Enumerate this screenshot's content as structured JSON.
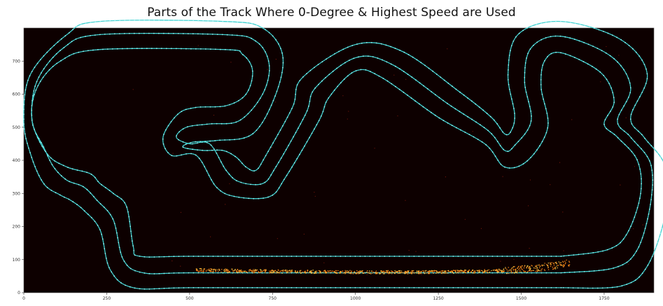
{
  "chart_data": {
    "type": "scatter",
    "title": "Parts of the Track Where 0-Degree & Highest Speed are Used",
    "xlabel": "",
    "ylabel": "",
    "xlim": [
      0,
      1900
    ],
    "ylim": [
      0,
      800
    ],
    "x_ticks": [
      0,
      250,
      500,
      750,
      1000,
      1250,
      1500,
      1750
    ],
    "y_ticks": [
      0,
      100,
      200,
      300,
      400,
      500,
      600,
      700
    ],
    "grid": false,
    "background": "#0d0000",
    "series": [
      {
        "color": "#3fd0d0",
        "points": [
          [
            1620,
            110
          ],
          [
            1320,
            110
          ],
          [
            900,
            110
          ],
          [
            500,
            110
          ],
          [
            350,
            110
          ],
          [
            330,
            140
          ],
          [
            310,
            260
          ],
          [
            270,
            300
          ],
          [
            230,
            330
          ],
          [
            200,
            360
          ],
          [
            130,
            380
          ],
          [
            70,
            420
          ],
          [
            25,
            520
          ],
          [
            40,
            620
          ],
          [
            110,
            700
          ],
          [
            230,
            735
          ],
          [
            600,
            735
          ],
          [
            660,
            720
          ],
          [
            690,
            670
          ],
          [
            670,
            600
          ],
          [
            610,
            565
          ],
          [
            520,
            560
          ],
          [
            465,
            540
          ],
          [
            420,
            470
          ],
          [
            445,
            415
          ],
          [
            520,
            415
          ],
          [
            580,
            320
          ],
          [
            640,
            290
          ],
          [
            740,
            290
          ],
          [
            790,
            350
          ],
          [
            890,
            520
          ],
          [
            920,
            590
          ],
          [
            1000,
            670
          ],
          [
            1080,
            650
          ],
          [
            1250,
            530
          ],
          [
            1390,
            450
          ],
          [
            1450,
            380
          ],
          [
            1520,
            400
          ],
          [
            1580,
            500
          ],
          [
            1560,
            620
          ],
          [
            1570,
            700
          ],
          [
            1620,
            725
          ],
          [
            1740,
            665
          ],
          [
            1780,
            580
          ],
          [
            1750,
            510
          ],
          [
            1790,
            470
          ],
          [
            1850,
            400
          ],
          [
            1860,
            300
          ],
          [
            1820,
            180
          ],
          [
            1760,
            130
          ],
          [
            1620,
            110
          ]
        ]
      },
      {
        "color": "#3fd0d0",
        "points": [
          [
            1620,
            60
          ],
          [
            1320,
            60
          ],
          [
            900,
            60
          ],
          [
            500,
            60
          ],
          [
            360,
            60
          ],
          [
            300,
            100
          ],
          [
            270,
            220
          ],
          [
            220,
            280
          ],
          [
            180,
            320
          ],
          [
            130,
            340
          ],
          [
            90,
            380
          ],
          [
            60,
            440
          ],
          [
            25,
            520
          ],
          [
            40,
            640
          ],
          [
            120,
            740
          ],
          [
            230,
            780
          ],
          [
            600,
            780
          ],
          [
            700,
            760
          ],
          [
            740,
            690
          ],
          [
            720,
            600
          ],
          [
            650,
            520
          ],
          [
            560,
            510
          ],
          [
            490,
            500
          ],
          [
            460,
            470
          ],
          [
            500,
            450
          ],
          [
            560,
            450
          ],
          [
            610,
            370
          ],
          [
            650,
            335
          ],
          [
            720,
            330
          ],
          [
            760,
            380
          ],
          [
            850,
            540
          ],
          [
            880,
            620
          ],
          [
            1000,
            710
          ],
          [
            1110,
            690
          ],
          [
            1280,
            570
          ],
          [
            1400,
            490
          ],
          [
            1450,
            430
          ],
          [
            1480,
            445
          ],
          [
            1530,
            520
          ],
          [
            1510,
            640
          ],
          [
            1530,
            740
          ],
          [
            1620,
            775
          ],
          [
            1770,
            715
          ],
          [
            1830,
            620
          ],
          [
            1790,
            520
          ],
          [
            1830,
            470
          ],
          [
            1890,
            390
          ],
          [
            1890,
            270
          ],
          [
            1850,
            130
          ],
          [
            1780,
            75
          ],
          [
            1620,
            60
          ]
        ]
      },
      {
        "color": "#3fd0d0",
        "points": [
          [
            1620,
            15
          ],
          [
            1320,
            15
          ],
          [
            900,
            15
          ],
          [
            500,
            15
          ],
          [
            330,
            15
          ],
          [
            260,
            70
          ],
          [
            230,
            190
          ],
          [
            180,
            250
          ],
          [
            140,
            280
          ],
          [
            110,
            295
          ],
          [
            60,
            330
          ],
          [
            20,
            420
          ],
          [
            0,
            520
          ],
          [
            20,
            660
          ],
          [
            130,
            780
          ],
          [
            230,
            820
          ],
          [
            600,
            820
          ],
          [
            720,
            800
          ],
          [
            780,
            720
          ],
          [
            760,
            600
          ],
          [
            690,
            480
          ],
          [
            580,
            460
          ],
          [
            510,
            455
          ],
          [
            480,
            440
          ],
          [
            540,
            430
          ],
          [
            600,
            430
          ],
          [
            640,
            410
          ],
          [
            670,
            380
          ],
          [
            700,
            370
          ],
          [
            730,
            415
          ],
          [
            810,
            560
          ],
          [
            840,
            650
          ],
          [
            1000,
            750
          ],
          [
            1140,
            730
          ],
          [
            1310,
            610
          ],
          [
            1410,
            530
          ],
          [
            1450,
            480
          ],
          [
            1470,
            490
          ],
          [
            1480,
            540
          ],
          [
            1460,
            660
          ],
          [
            1490,
            780
          ],
          [
            1620,
            820
          ],
          [
            1800,
            765
          ],
          [
            1880,
            660
          ],
          [
            1830,
            530
          ],
          [
            1870,
            470
          ],
          [
            1935,
            380
          ],
          [
            1935,
            240
          ],
          [
            1880,
            80
          ],
          [
            1800,
            20
          ],
          [
            1620,
            15
          ]
        ]
      },
      {
        "color": "#ff8c1a",
        "x_range": [
          520,
          1650
        ],
        "y_center": 65,
        "description_points": [
          [
            520,
            68
          ],
          [
            800,
            64
          ],
          [
            1000,
            62
          ],
          [
            1200,
            62
          ],
          [
            1350,
            64
          ],
          [
            1450,
            67
          ],
          [
            1550,
            75
          ],
          [
            1600,
            82
          ],
          [
            1650,
            92
          ]
        ]
      }
    ]
  }
}
